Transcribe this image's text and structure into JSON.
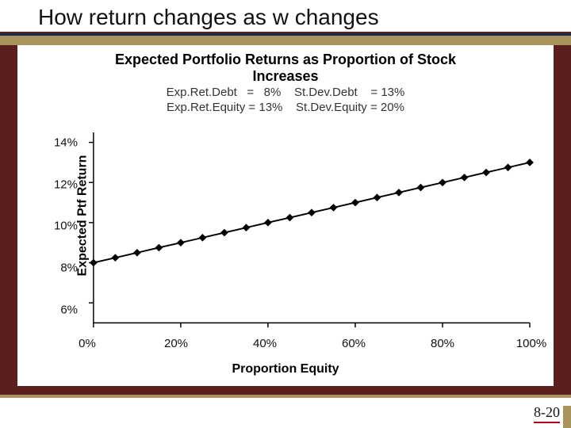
{
  "slide": {
    "title": "How return changes as w changes",
    "page_number": "8-20",
    "background_color": "#5a1e1e",
    "title_rule_color": "#1a2a52",
    "accent_color": "#a8935c",
    "title_fontsize": 28
  },
  "chart": {
    "type": "scatter-line",
    "title_line1": "Expected Portfolio Returns as Proportion of Stock",
    "title_line2": "Increases",
    "title_fontsize": 18,
    "subtitle_line1": "Exp.Ret.Debt   =   8%    St.Dev.Debt    = 13%",
    "subtitle_line2": "Exp.Ret.Equity = 13%    St.Dev.Equity = 20%",
    "subtitle_fontsize": 15,
    "xlabel": "Proportion Equity",
    "ylabel": "Expected Ptf Return",
    "label_fontsize": 16,
    "xlim": [
      0,
      100
    ],
    "ylim": [
      5,
      14.5
    ],
    "xticks": [
      0,
      20,
      40,
      60,
      80,
      100
    ],
    "xtick_labels": [
      "0%",
      "20%",
      "40%",
      "60%",
      "80%",
      "100%"
    ],
    "yticks": [
      6,
      8,
      10,
      12,
      14
    ],
    "ytick_labels": [
      "6%",
      "8%",
      "10%",
      "12%",
      "14%"
    ],
    "tick_fontsize": 15,
    "x_values": [
      0,
      5,
      10,
      15,
      20,
      25,
      30,
      35,
      40,
      45,
      50,
      55,
      60,
      65,
      70,
      75,
      80,
      85,
      90,
      95,
      100
    ],
    "y_values": [
      8.0,
      8.25,
      8.5,
      8.75,
      9.0,
      9.25,
      9.5,
      9.75,
      10.0,
      10.25,
      10.5,
      10.75,
      11.0,
      11.25,
      11.5,
      11.75,
      12.0,
      12.25,
      12.5,
      12.75,
      13.0
    ],
    "line_color": "#000000",
    "line_width": 2,
    "marker_shape": "diamond",
    "marker_size": 10,
    "marker_color": "#000000",
    "axis_color": "#000000",
    "axis_width": 1.5,
    "tick_len": 6,
    "background_color": "#ffffff"
  }
}
